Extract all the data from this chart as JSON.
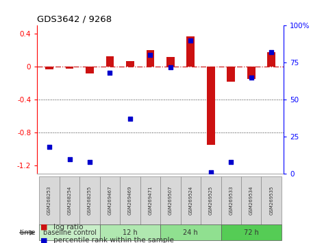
{
  "title": "GDS3642 / 9268",
  "samples": [
    "GSM268253",
    "GSM268254",
    "GSM268255",
    "GSM269467",
    "GSM269469",
    "GSM269471",
    "GSM269507",
    "GSM269524",
    "GSM269525",
    "GSM269533",
    "GSM269534",
    "GSM269535"
  ],
  "log_ratio": [
    -0.03,
    -0.02,
    -0.08,
    0.13,
    0.07,
    0.2,
    0.12,
    0.37,
    -0.95,
    -0.18,
    -0.15,
    0.18
  ],
  "percentile_rank": [
    18,
    10,
    8,
    68,
    37,
    80,
    72,
    90,
    1,
    8,
    65,
    82
  ],
  "group_defs": [
    {
      "label": "baseline control",
      "start": 0,
      "end": 3,
      "color": "#c8eec8"
    },
    {
      "label": "12 h",
      "start": 3,
      "end": 6,
      "color": "#b0e8b0"
    },
    {
      "label": "24 h",
      "start": 6,
      "end": 9,
      "color": "#90e090"
    },
    {
      "label": "72 h",
      "start": 9,
      "end": 12,
      "color": "#55cc55"
    }
  ],
  "ylim_left": [
    -1.3,
    0.5
  ],
  "ylim_right": [
    0,
    100
  ],
  "yticks_left": [
    -1.2,
    -0.8,
    -0.4,
    0.0,
    0.4
  ],
  "ytick_labels_left": [
    "-1.2",
    "-0.8",
    "-0.4",
    "0",
    "0.4"
  ],
  "yticks_right": [
    0,
    25,
    50,
    75,
    100
  ],
  "ytick_labels_right": [
    "0",
    "25",
    "50",
    "75",
    "100%"
  ],
  "bar_color": "#cc1111",
  "scatter_color": "#0000cc",
  "background_color": "#ffffff",
  "zero_line_color": "#cc2222",
  "dotted_line_color": "#333333",
  "sample_box_color": "#d8d8d8",
  "sample_box_edge": "#888888",
  "time_label": "time",
  "legend_logratio": "log ratio",
  "legend_percentile": "percentile rank within the sample",
  "bar_width": 0.4
}
